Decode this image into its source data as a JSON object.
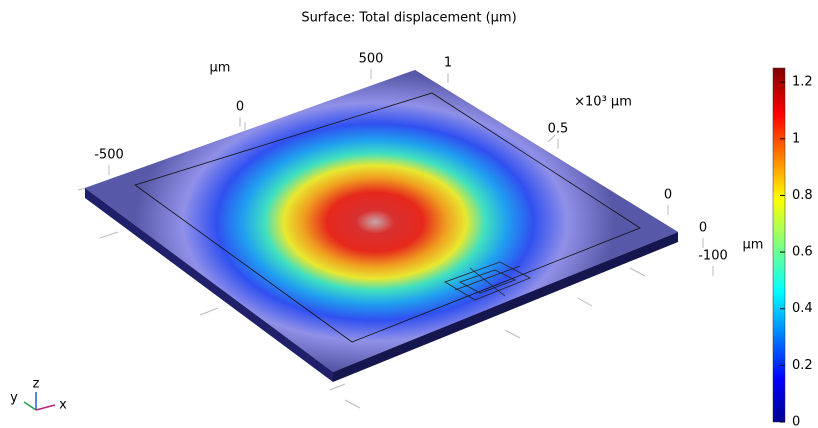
{
  "chart_data": {
    "type": "surface",
    "title": "Surface: Total displacement (µm)",
    "y_axis": {
      "label": "µm",
      "ticks": [
        -500,
        0,
        500
      ]
    },
    "x_axis": {
      "label": "×10³ µm",
      "ticks": [
        0,
        0.5,
        1
      ]
    },
    "z_axis": {
      "ticks": [
        -100,
        0
      ]
    },
    "colorbar": {
      "label": "µm",
      "clim": [
        0,
        1.25
      ],
      "ticks": [
        0,
        0.2,
        0.4,
        0.6,
        0.8,
        1,
        1.2
      ],
      "colormap": "jet"
    },
    "triad": {
      "x": "x",
      "y": "y",
      "z": "z"
    }
  }
}
